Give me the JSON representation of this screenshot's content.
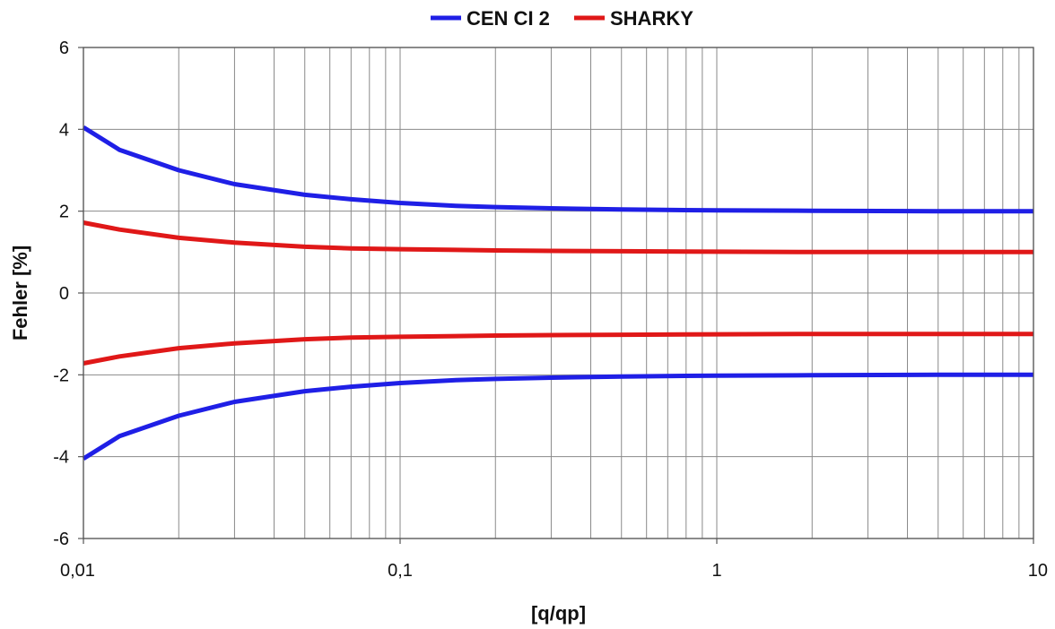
{
  "chart_data": {
    "type": "line",
    "title": "",
    "xlabel": "[q/qp]",
    "ylabel": "Fehler [%]",
    "xscale": "log",
    "xlim": [
      0.01,
      10
    ],
    "ylim": [
      -6,
      6
    ],
    "grid": true,
    "legend_position": "top-center",
    "x_ticks": [
      0.01,
      0.1,
      1,
      10
    ],
    "x_tick_labels": [
      "0,01",
      "0,1",
      "1",
      "10"
    ],
    "y_ticks": [
      -6,
      -4,
      -2,
      0,
      2,
      4,
      6
    ],
    "y_tick_labels": [
      "-6",
      "-4",
      "-2",
      "0",
      "2",
      "4",
      "6"
    ],
    "series": [
      {
        "name": "CEN CI 2",
        "color": "#1f1fe6",
        "role": "upper",
        "x": [
          0.01,
          0.013,
          0.02,
          0.03,
          0.05,
          0.07,
          0.1,
          0.15,
          0.2,
          0.3,
          0.5,
          1,
          2,
          5,
          10
        ],
        "y": [
          4.05,
          3.5,
          3.0,
          2.66,
          2.4,
          2.29,
          2.2,
          2.13,
          2.1,
          2.07,
          2.04,
          2.02,
          2.01,
          2.0,
          2.0
        ]
      },
      {
        "name": "CEN CI 2",
        "color": "#1f1fe6",
        "role": "lower",
        "x": [
          0.01,
          0.013,
          0.02,
          0.03,
          0.05,
          0.07,
          0.1,
          0.15,
          0.2,
          0.3,
          0.5,
          1,
          2,
          5,
          10
        ],
        "y": [
          -4.05,
          -3.5,
          -3.0,
          -2.66,
          -2.4,
          -2.29,
          -2.2,
          -2.13,
          -2.1,
          -2.07,
          -2.04,
          -2.02,
          -2.01,
          -2.0,
          -2.0
        ]
      },
      {
        "name": "SHARKY",
        "color": "#e01818",
        "role": "upper",
        "x": [
          0.01,
          0.013,
          0.02,
          0.03,
          0.05,
          0.07,
          0.1,
          0.2,
          0.3,
          0.5,
          1,
          2,
          5,
          10
        ],
        "y": [
          1.72,
          1.55,
          1.35,
          1.23,
          1.13,
          1.09,
          1.07,
          1.04,
          1.03,
          1.02,
          1.01,
          1.0,
          1.0,
          1.0
        ]
      },
      {
        "name": "SHARKY",
        "color": "#e01818",
        "role": "lower",
        "x": [
          0.01,
          0.013,
          0.02,
          0.03,
          0.05,
          0.07,
          0.1,
          0.2,
          0.3,
          0.5,
          1,
          2,
          5,
          10
        ],
        "y": [
          -1.72,
          -1.55,
          -1.35,
          -1.23,
          -1.13,
          -1.09,
          -1.07,
          -1.04,
          -1.03,
          -1.02,
          -1.01,
          -1.0,
          -1.0,
          -1.0
        ]
      }
    ],
    "legend": [
      {
        "label": "CEN CI 2",
        "color": "#1f1fe6"
      },
      {
        "label": "SHARKY",
        "color": "#e01818"
      }
    ]
  }
}
